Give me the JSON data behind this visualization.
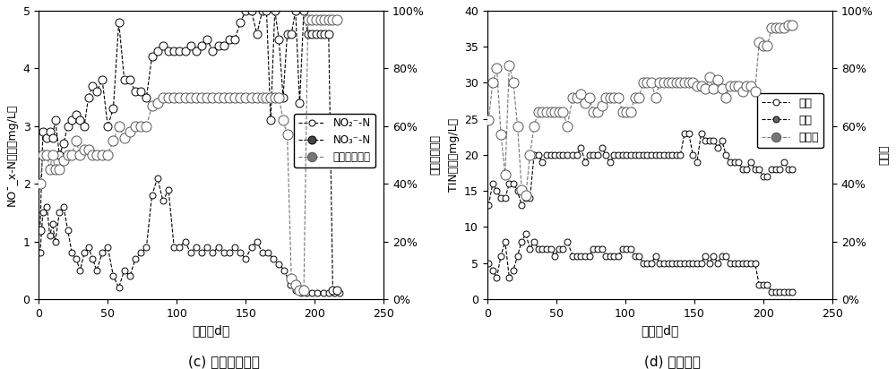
{
  "fig_width": 10.0,
  "fig_height": 4.12,
  "dpi": 100,
  "background_color": "#ffffff",
  "plot_c": {
    "ylabel_left": "NO¯_x-N浓度（mg/L）",
    "ylabel_right": "亚础氮积累率",
    "xlabel": "时间（d）",
    "subtitle": "(c) 础氮和亚础氮",
    "xlim": [
      0,
      250
    ],
    "ylim_left": [
      0,
      5
    ],
    "ylim_right": [
      0,
      1.0
    ],
    "yticks_left": [
      0,
      1,
      2,
      3,
      4,
      5
    ],
    "yticks_right": [
      0,
      0.2,
      0.4,
      0.6,
      0.8,
      1.0
    ],
    "yticklabels_right": [
      "0%",
      "20%",
      "40%",
      "60%",
      "80%",
      "100%"
    ],
    "xticks": [
      0,
      50,
      100,
      150,
      200,
      250
    ],
    "legend_labels": [
      "NO₂⁻-N",
      "NO₃⁻-N",
      "亚础氮积累率"
    ],
    "no2_x": [
      1,
      3,
      6,
      8,
      10,
      12,
      15,
      18,
      21,
      24,
      27,
      30,
      33,
      36,
      39,
      42,
      46,
      50,
      54,
      58,
      62,
      66,
      70,
      74,
      78,
      82,
      86,
      90,
      94,
      98,
      102,
      106,
      110,
      114,
      118,
      122,
      126,
      130,
      134,
      138,
      142,
      146,
      150,
      154,
      158,
      162,
      166,
      170,
      174,
      178,
      182,
      186,
      190,
      194,
      198,
      202,
      206,
      210,
      214,
      218
    ],
    "no2_y": [
      0.8,
      1.5,
      1.6,
      1.1,
      1.3,
      1.0,
      1.5,
      1.6,
      1.2,
      0.8,
      0.7,
      0.5,
      0.8,
      0.9,
      0.7,
      0.5,
      0.8,
      0.9,
      0.4,
      0.2,
      0.5,
      0.4,
      0.7,
      0.8,
      0.9,
      1.8,
      2.1,
      1.7,
      1.9,
      0.9,
      0.9,
      1.0,
      0.8,
      0.9,
      0.8,
      0.9,
      0.8,
      0.9,
      0.8,
      0.8,
      0.9,
      0.8,
      0.7,
      0.9,
      1.0,
      0.8,
      0.8,
      0.7,
      0.6,
      0.5,
      0.25,
      0.15,
      0.1,
      0.1,
      0.1,
      0.1,
      0.1,
      0.1,
      0.1,
      0.1
    ],
    "no3_x": [
      1,
      3,
      6,
      8,
      10,
      12,
      15,
      18,
      21,
      24,
      27,
      30,
      33,
      36,
      39,
      42,
      46,
      50,
      54,
      58,
      62,
      66,
      70,
      74,
      78,
      82,
      86,
      90,
      94,
      98,
      102,
      106,
      110,
      114,
      118,
      122,
      126,
      130,
      134,
      138,
      142,
      146,
      150,
      154,
      158,
      162,
      165,
      168,
      171,
      174,
      177,
      180,
      183,
      186,
      189,
      192,
      195,
      198,
      201,
      204,
      207,
      210,
      213,
      216
    ],
    "no3_y": [
      1.2,
      2.9,
      2.8,
      2.9,
      2.8,
      3.1,
      2.5,
      2.7,
      3.0,
      3.1,
      3.2,
      3.1,
      3.0,
      3.5,
      3.7,
      3.6,
      3.8,
      3.0,
      3.3,
      4.8,
      3.8,
      3.8,
      3.6,
      3.6,
      3.5,
      4.2,
      4.3,
      4.4,
      4.3,
      4.3,
      4.3,
      4.3,
      4.4,
      4.3,
      4.4,
      4.5,
      4.3,
      4.4,
      4.4,
      4.5,
      4.5,
      4.8,
      5.0,
      5.0,
      4.6,
      5.0,
      5.0,
      3.1,
      5.0,
      4.5,
      3.5,
      4.6,
      4.6,
      5.0,
      3.4,
      5.0,
      4.6,
      4.6,
      4.6,
      4.6,
      4.6,
      4.6,
      0.15,
      0.15
    ],
    "acc_x": [
      1,
      3,
      6,
      8,
      10,
      12,
      15,
      18,
      21,
      24,
      27,
      30,
      33,
      36,
      39,
      42,
      46,
      50,
      54,
      58,
      62,
      66,
      70,
      74,
      78,
      82,
      86,
      90,
      94,
      98,
      102,
      106,
      110,
      114,
      118,
      122,
      126,
      130,
      134,
      138,
      142,
      146,
      150,
      154,
      158,
      162,
      165,
      168,
      171,
      174,
      177,
      180,
      183,
      186,
      189,
      192,
      195,
      198,
      201,
      204,
      207,
      210,
      213,
      216
    ],
    "acc_y": [
      0.4,
      0.5,
      0.5,
      0.45,
      0.5,
      0.45,
      0.45,
      0.48,
      0.5,
      0.5,
      0.55,
      0.5,
      0.52,
      0.52,
      0.5,
      0.5,
      0.5,
      0.5,
      0.55,
      0.6,
      0.56,
      0.58,
      0.6,
      0.6,
      0.6,
      0.67,
      0.68,
      0.7,
      0.7,
      0.7,
      0.7,
      0.7,
      0.7,
      0.7,
      0.7,
      0.7,
      0.7,
      0.7,
      0.7,
      0.7,
      0.7,
      0.7,
      0.7,
      0.7,
      0.7,
      0.7,
      0.7,
      0.7,
      0.7,
      0.7,
      0.62,
      0.57,
      0.07,
      0.05,
      0.03,
      0.03,
      0.97,
      0.97,
      0.97,
      0.97,
      0.97,
      0.97,
      0.97,
      0.97
    ]
  },
  "plot_d": {
    "ylabel_left": "TIN浓度（mg/L）",
    "ylabel_right": "去除率",
    "xlabel": "时间（d）",
    "subtitle": "(d) 总无机氮",
    "xlim": [
      0,
      250
    ],
    "ylim_left": [
      0,
      40
    ],
    "ylim_right": [
      0,
      1.0
    ],
    "yticks_left": [
      0,
      5,
      10,
      15,
      20,
      25,
      30,
      35,
      40
    ],
    "yticks_right": [
      0,
      0.2,
      0.4,
      0.6,
      0.8,
      1.0
    ],
    "yticklabels_right": [
      "0%",
      "20%",
      "40%",
      "60%",
      "80%",
      "100%"
    ],
    "xticks": [
      0,
      50,
      100,
      150,
      200,
      250
    ],
    "legend_labels": [
      "进水",
      "出水",
      "去除率"
    ],
    "jin_x": [
      1,
      4,
      7,
      10,
      13,
      16,
      19,
      22,
      25,
      28,
      31,
      34,
      37,
      40,
      43,
      46,
      49,
      52,
      55,
      58,
      62,
      65,
      68,
      71,
      74,
      77,
      80,
      83,
      86,
      89,
      92,
      95,
      98,
      101,
      104,
      107,
      110,
      113,
      116,
      119,
      122,
      125,
      128,
      131,
      134,
      137,
      140,
      143,
      146,
      149,
      152,
      155,
      158,
      161,
      164,
      167,
      170,
      173,
      176,
      179,
      182,
      185,
      188,
      191,
      194,
      197,
      200,
      203,
      206,
      209,
      212,
      215,
      218,
      221
    ],
    "jin_y": [
      13,
      16,
      15,
      14,
      14,
      16,
      16,
      15,
      13,
      14,
      14,
      20,
      20,
      19,
      20,
      20,
      20,
      20,
      20,
      20,
      20,
      20,
      21,
      19,
      20,
      20,
      20,
      21,
      20,
      19,
      20,
      20,
      20,
      20,
      20,
      20,
      20,
      20,
      20,
      20,
      20,
      20,
      20,
      20,
      20,
      20,
      20,
      23,
      23,
      20,
      19,
      23,
      22,
      22,
      22,
      21,
      22,
      20,
      19,
      19,
      19,
      18,
      18,
      19,
      18,
      18,
      17,
      17,
      18,
      18,
      18,
      19,
      18,
      18
    ],
    "chu_x": [
      1,
      4,
      7,
      10,
      13,
      16,
      19,
      22,
      25,
      28,
      31,
      34,
      37,
      40,
      43,
      46,
      49,
      52,
      55,
      58,
      62,
      65,
      68,
      71,
      74,
      77,
      80,
      83,
      86,
      89,
      92,
      95,
      98,
      101,
      104,
      107,
      110,
      113,
      116,
      119,
      122,
      125,
      128,
      131,
      134,
      137,
      140,
      143,
      146,
      149,
      152,
      155,
      158,
      161,
      164,
      167,
      170,
      173,
      176,
      179,
      182,
      185,
      188,
      191,
      194,
      197,
      200,
      203,
      206,
      209,
      212,
      215,
      218,
      221
    ],
    "chu_y": [
      5,
      4,
      3,
      6,
      8,
      3,
      4,
      6,
      8,
      9,
      7,
      8,
      7,
      7,
      7,
      7,
      6,
      7,
      7,
      8,
      6,
      6,
      6,
      6,
      6,
      7,
      7,
      7,
      6,
      6,
      6,
      6,
      7,
      7,
      7,
      6,
      6,
      5,
      5,
      5,
      6,
      5,
      5,
      5,
      5,
      5,
      5,
      5,
      5,
      5,
      5,
      5,
      6,
      5,
      6,
      5,
      6,
      6,
      5,
      5,
      5,
      5,
      5,
      5,
      5,
      2,
      2,
      2,
      1,
      1,
      1,
      1,
      1,
      1
    ],
    "removal_x": [
      1,
      4,
      7,
      10,
      13,
      16,
      19,
      22,
      25,
      28,
      31,
      34,
      37,
      40,
      43,
      46,
      49,
      52,
      55,
      58,
      62,
      65,
      68,
      71,
      74,
      77,
      80,
      83,
      86,
      89,
      92,
      95,
      98,
      101,
      104,
      107,
      110,
      113,
      116,
      119,
      122,
      125,
      128,
      131,
      134,
      137,
      140,
      143,
      146,
      149,
      152,
      155,
      158,
      161,
      164,
      167,
      170,
      173,
      176,
      179,
      182,
      185,
      188,
      191,
      194,
      197,
      200,
      203,
      206,
      209,
      212,
      215,
      218,
      221
    ],
    "removal_y": [
      0.62,
      0.75,
      0.8,
      0.57,
      0.43,
      0.81,
      0.75,
      0.6,
      0.38,
      0.36,
      0.5,
      0.6,
      0.65,
      0.65,
      0.65,
      0.65,
      0.65,
      0.65,
      0.65,
      0.6,
      0.7,
      0.7,
      0.71,
      0.68,
      0.7,
      0.65,
      0.65,
      0.67,
      0.7,
      0.7,
      0.7,
      0.7,
      0.65,
      0.65,
      0.65,
      0.7,
      0.7,
      0.75,
      0.75,
      0.75,
      0.7,
      0.75,
      0.75,
      0.75,
      0.75,
      0.75,
      0.75,
      0.75,
      0.75,
      0.75,
      0.74,
      0.74,
      0.73,
      0.77,
      0.73,
      0.76,
      0.73,
      0.7,
      0.74,
      0.74,
      0.74,
      0.72,
      0.74,
      0.74,
      0.72,
      0.89,
      0.88,
      0.88,
      0.94,
      0.94,
      0.94,
      0.94,
      0.95,
      0.95
    ]
  }
}
